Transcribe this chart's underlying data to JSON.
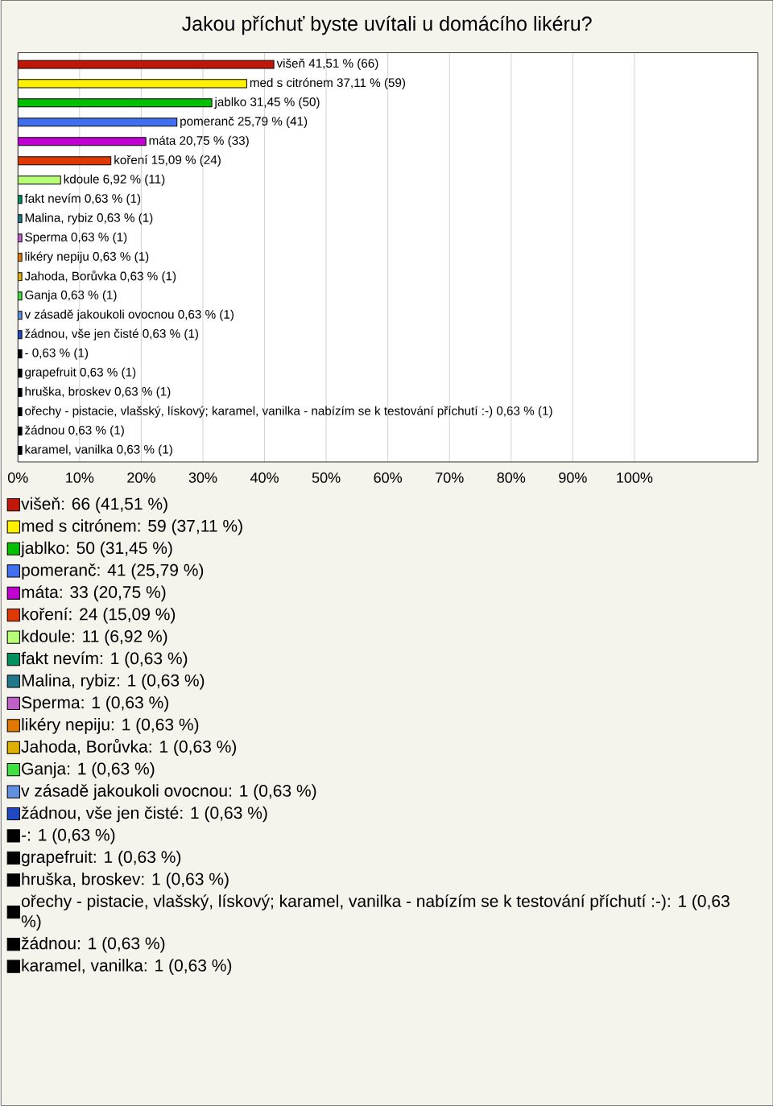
{
  "chart_data": {
    "type": "bar",
    "orientation": "horizontal",
    "stacked": true,
    "title": "Jakou příchuť byste uvítali u domácího likéru?",
    "categories": [
      null,
      null,
      null,
      null,
      null,
      null,
      null,
      null,
      null,
      null,
      null,
      null,
      null,
      null,
      null,
      null,
      null,
      null,
      null,
      null,
      null
    ],
    "series": [
      {
        "name": "višeň: 66 (41,51 %)",
        "color": "#c01808",
        "values": [
          41.51,
          null,
          null,
          null,
          null,
          null,
          null,
          null,
          null,
          null,
          null,
          null,
          null,
          null,
          null,
          null,
          null,
          null,
          null,
          null,
          null
        ],
        "value_labels": [
          "višeň 41,51 % (66)",
          null,
          null,
          null,
          null,
          null,
          null,
          null,
          null,
          null,
          null,
          null,
          null,
          null,
          null,
          null,
          null,
          null,
          null,
          null,
          null
        ]
      },
      {
        "name": "med s citrónem: 59 (37,11 %)",
        "color": "#fff000",
        "values": [
          null,
          37.11,
          null,
          null,
          null,
          null,
          null,
          null,
          null,
          null,
          null,
          null,
          null,
          null,
          null,
          null,
          null,
          null,
          null,
          null,
          null
        ],
        "value_labels": [
          null,
          "med s citrónem 37,11 % (59)",
          null,
          null,
          null,
          null,
          null,
          null,
          null,
          null,
          null,
          null,
          null,
          null,
          null,
          null,
          null,
          null,
          null,
          null,
          null
        ]
      },
      {
        "name": "jablko: 50 (31,45 %)",
        "color": "#00c000",
        "values": [
          null,
          null,
          31.45,
          null,
          null,
          null,
          null,
          null,
          null,
          null,
          null,
          null,
          null,
          null,
          null,
          null,
          null,
          null,
          null,
          null,
          null
        ],
        "value_labels": [
          null,
          null,
          "jablko 31,45 % (50)",
          null,
          null,
          null,
          null,
          null,
          null,
          null,
          null,
          null,
          null,
          null,
          null,
          null,
          null,
          null,
          null,
          null,
          null
        ]
      },
      {
        "name": "pomeranč: 41 (25,79 %)",
        "color": "#4070f0",
        "values": [
          null,
          null,
          null,
          25.79,
          null,
          null,
          null,
          null,
          null,
          null,
          null,
          null,
          null,
          null,
          null,
          null,
          null,
          null,
          null,
          null,
          null
        ],
        "value_labels": [
          null,
          null,
          null,
          "pomeranč 25,79 % (41)",
          null,
          null,
          null,
          null,
          null,
          null,
          null,
          null,
          null,
          null,
          null,
          null,
          null,
          null,
          null,
          null,
          null
        ]
      },
      {
        "name": "máta: 33 (20,75 %)",
        "color": "#c000d0",
        "values": [
          null,
          null,
          null,
          null,
          20.75,
          null,
          null,
          null,
          null,
          null,
          null,
          null,
          null,
          null,
          null,
          null,
          null,
          null,
          null,
          null,
          null
        ],
        "value_labels": [
          null,
          null,
          null,
          null,
          "máta 20,75 % (33)",
          null,
          null,
          null,
          null,
          null,
          null,
          null,
          null,
          null,
          null,
          null,
          null,
          null,
          null,
          null,
          null
        ]
      },
      {
        "name": "koření: 24 (15,09 %)",
        "color": "#e03800",
        "values": [
          null,
          null,
          null,
          null,
          null,
          15.09,
          null,
          null,
          null,
          null,
          null,
          null,
          null,
          null,
          null,
          null,
          null,
          null,
          null,
          null,
          null
        ],
        "value_labels": [
          null,
          null,
          null,
          null,
          null,
          "koření 15,09 % (24)",
          null,
          null,
          null,
          null,
          null,
          null,
          null,
          null,
          null,
          null,
          null,
          null,
          null,
          null,
          null
        ]
      },
      {
        "name": "kdoule: 11 (6,92 %)",
        "color": "#b8ff78",
        "values": [
          null,
          null,
          null,
          null,
          null,
          null,
          6.92,
          null,
          null,
          null,
          null,
          null,
          null,
          null,
          null,
          null,
          null,
          null,
          null,
          null,
          null
        ],
        "value_labels": [
          null,
          null,
          null,
          null,
          null,
          null,
          "kdoule 6,92 % (11)",
          null,
          null,
          null,
          null,
          null,
          null,
          null,
          null,
          null,
          null,
          null,
          null,
          null,
          null
        ]
      },
      {
        "name": "fakt nevím: 1 (0,63 %)",
        "color": "#009060",
        "values": [
          null,
          null,
          null,
          null,
          null,
          null,
          null,
          0.63,
          null,
          null,
          null,
          null,
          null,
          null,
          null,
          null,
          null,
          null,
          null,
          null,
          null
        ],
        "value_labels": [
          null,
          null,
          null,
          null,
          null,
          null,
          null,
          "fakt nevím 0,63 % (1)",
          null,
          null,
          null,
          null,
          null,
          null,
          null,
          null,
          null,
          null,
          null,
          null,
          null
        ]
      },
      {
        "name": "Malina, rybiz: 1 (0,63 %)",
        "color": "#207888",
        "values": [
          null,
          null,
          null,
          null,
          null,
          null,
          null,
          null,
          0.63,
          null,
          null,
          null,
          null,
          null,
          null,
          null,
          null,
          null,
          null,
          null,
          null
        ],
        "value_labels": [
          null,
          null,
          null,
          null,
          null,
          null,
          null,
          null,
          "Malina, rybiz 0,63 % (1)",
          null,
          null,
          null,
          null,
          null,
          null,
          null,
          null,
          null,
          null,
          null,
          null
        ]
      },
      {
        "name": "Sperma: 1 (0,63 %)",
        "color": "#c060c8",
        "values": [
          null,
          null,
          null,
          null,
          null,
          null,
          null,
          null,
          null,
          0.63,
          null,
          null,
          null,
          null,
          null,
          null,
          null,
          null,
          null,
          null,
          null
        ],
        "value_labels": [
          null,
          null,
          null,
          null,
          null,
          null,
          null,
          null,
          null,
          "Sperma 0,63 % (1)",
          null,
          null,
          null,
          null,
          null,
          null,
          null,
          null,
          null,
          null,
          null
        ]
      },
      {
        "name": "likéry nepiju: 1 (0,63 %)",
        "color": "#e07800",
        "values": [
          null,
          null,
          null,
          null,
          null,
          null,
          null,
          null,
          null,
          null,
          0.63,
          null,
          null,
          null,
          null,
          null,
          null,
          null,
          null,
          null,
          null
        ],
        "value_labels": [
          null,
          null,
          null,
          null,
          null,
          null,
          null,
          null,
          null,
          null,
          "likéry nepiju 0,63 % (1)",
          null,
          null,
          null,
          null,
          null,
          null,
          null,
          null,
          null,
          null
        ]
      },
      {
        "name": "Jahoda, Borůvka: 1 (0,63 %)",
        "color": "#e0b000",
        "values": [
          null,
          null,
          null,
          null,
          null,
          null,
          null,
          null,
          null,
          null,
          null,
          0.63,
          null,
          null,
          null,
          null,
          null,
          null,
          null,
          null,
          null
        ],
        "value_labels": [
          null,
          null,
          null,
          null,
          null,
          null,
          null,
          null,
          null,
          null,
          null,
          "Jahoda, Borůvka 0,63 % (1)",
          null,
          null,
          null,
          null,
          null,
          null,
          null,
          null,
          null
        ]
      },
      {
        "name": "Ganja: 1 (0,63 %)",
        "color": "#40e040",
        "values": [
          null,
          null,
          null,
          null,
          null,
          null,
          null,
          null,
          null,
          null,
          null,
          null,
          0.63,
          null,
          null,
          null,
          null,
          null,
          null,
          null,
          null
        ],
        "value_labels": [
          null,
          null,
          null,
          null,
          null,
          null,
          null,
          null,
          null,
          null,
          null,
          null,
          "Ganja 0,63 % (1)",
          null,
          null,
          null,
          null,
          null,
          null,
          null,
          null
        ]
      },
      {
        "name": "v zásadě jakoukoli ovocnou: 1 (0,63 %)",
        "color": "#6090e0",
        "values": [
          null,
          null,
          null,
          null,
          null,
          null,
          null,
          null,
          null,
          null,
          null,
          null,
          null,
          0.63,
          null,
          null,
          null,
          null,
          null,
          null,
          null
        ],
        "value_labels": [
          null,
          null,
          null,
          null,
          null,
          null,
          null,
          null,
          null,
          null,
          null,
          null,
          null,
          "v zásadě jakoukoli ovocnou 0,63 % (1)",
          null,
          null,
          null,
          null,
          null,
          null,
          null
        ]
      },
      {
        "name": "žádnou, vše jen čisté: 1 (0,63 %)",
        "color": "#2048c0",
        "values": [
          null,
          null,
          null,
          null,
          null,
          null,
          null,
          null,
          null,
          null,
          null,
          null,
          null,
          null,
          0.63,
          null,
          null,
          null,
          null,
          null,
          null
        ],
        "value_labels": [
          null,
          null,
          null,
          null,
          null,
          null,
          null,
          null,
          null,
          null,
          null,
          null,
          null,
          null,
          "žádnou, vše jen čisté 0,63 % (1)",
          null,
          null,
          null,
          null,
          null,
          null
        ]
      },
      {
        "name": "-: 1 (0,63 %)",
        "color": "#000000",
        "values": [
          null,
          null,
          null,
          null,
          null,
          null,
          null,
          null,
          null,
          null,
          null,
          null,
          null,
          null,
          null,
          0.63,
          null,
          null,
          null,
          null,
          null
        ],
        "value_labels": [
          null,
          null,
          null,
          null,
          null,
          null,
          null,
          null,
          null,
          null,
          null,
          null,
          null,
          null,
          null,
          "- 0,63 % (1)",
          null,
          null,
          null,
          null,
          null
        ]
      },
      {
        "name": "grapefruit: 1 (0,63 %)",
        "color": "#000000",
        "values": [
          null,
          null,
          null,
          null,
          null,
          null,
          null,
          null,
          null,
          null,
          null,
          null,
          null,
          null,
          null,
          null,
          0.63,
          null,
          null,
          null,
          null
        ],
        "value_labels": [
          null,
          null,
          null,
          null,
          null,
          null,
          null,
          null,
          null,
          null,
          null,
          null,
          null,
          null,
          null,
          null,
          "grapefruit 0,63 % (1)",
          null,
          null,
          null,
          null
        ]
      },
      {
        "name": "hruška, broskev: 1 (0,63 %)",
        "color": "#000000",
        "values": [
          null,
          null,
          null,
          null,
          null,
          null,
          null,
          null,
          null,
          null,
          null,
          null,
          null,
          null,
          null,
          null,
          null,
          0.63,
          null,
          null,
          null
        ],
        "value_labels": [
          null,
          null,
          null,
          null,
          null,
          null,
          null,
          null,
          null,
          null,
          null,
          null,
          null,
          null,
          null,
          null,
          null,
          "hruška, broskev 0,63 % (1)",
          null,
          null,
          null
        ]
      },
      {
        "name": "ořechy - pistacie, vlašský, lískový; karamel, vanilka - nabízím se k testování příchutí :-): 1 (0,63 %)",
        "color": "#000000",
        "values": [
          null,
          null,
          null,
          null,
          null,
          null,
          null,
          null,
          null,
          null,
          null,
          null,
          null,
          null,
          null,
          null,
          null,
          null,
          0.63,
          null,
          null
        ],
        "value_labels": [
          null,
          null,
          null,
          null,
          null,
          null,
          null,
          null,
          null,
          null,
          null,
          null,
          null,
          null,
          null,
          null,
          null,
          null,
          "ořechy - pistacie, vlašský, lískový; karamel, vanilka - nabízím se k testování příchutí :-) 0,63 % (1)",
          null,
          null
        ]
      },
      {
        "name": "žádnou: 1 (0,63 %)",
        "color": "#000000",
        "values": [
          null,
          null,
          null,
          null,
          null,
          null,
          null,
          null,
          null,
          null,
          null,
          null,
          null,
          null,
          null,
          null,
          null,
          null,
          null,
          0.63,
          null
        ],
        "value_labels": [
          null,
          null,
          null,
          null,
          null,
          null,
          null,
          null,
          null,
          null,
          null,
          null,
          null,
          null,
          null,
          null,
          null,
          null,
          null,
          "žádnou 0,63 % (1)",
          null
        ]
      },
      {
        "name": "karamel, vanilka: 1 (0,63 %)",
        "color": "#000000",
        "values": [
          null,
          null,
          null,
          null,
          null,
          null,
          null,
          null,
          null,
          null,
          null,
          null,
          null,
          null,
          null,
          null,
          null,
          null,
          null,
          null,
          0.63
        ],
        "value_labels": [
          null,
          null,
          null,
          null,
          null,
          null,
          null,
          null,
          null,
          null,
          null,
          null,
          null,
          null,
          null,
          null,
          null,
          null,
          null,
          null,
          "karamel, vanilka 0,63 % (1)"
        ]
      }
    ],
    "xlim": [
      0,
      120
    ],
    "xticks": [
      {
        "value": 0,
        "label": "0%"
      },
      {
        "value": 10,
        "label": "10%"
      },
      {
        "value": 20,
        "label": "20%"
      },
      {
        "value": 30,
        "label": "30%"
      },
      {
        "value": 40,
        "label": "40%"
      },
      {
        "value": 50,
        "label": "50%"
      },
      {
        "value": 60,
        "label": "60%"
      },
      {
        "value": 70,
        "label": "70%"
      },
      {
        "value": 80,
        "label": "80%"
      },
      {
        "value": 90,
        "label": "90%"
      },
      {
        "value": 100,
        "label": "100%"
      }
    ],
    "grid": "x",
    "legend": "bottom"
  }
}
